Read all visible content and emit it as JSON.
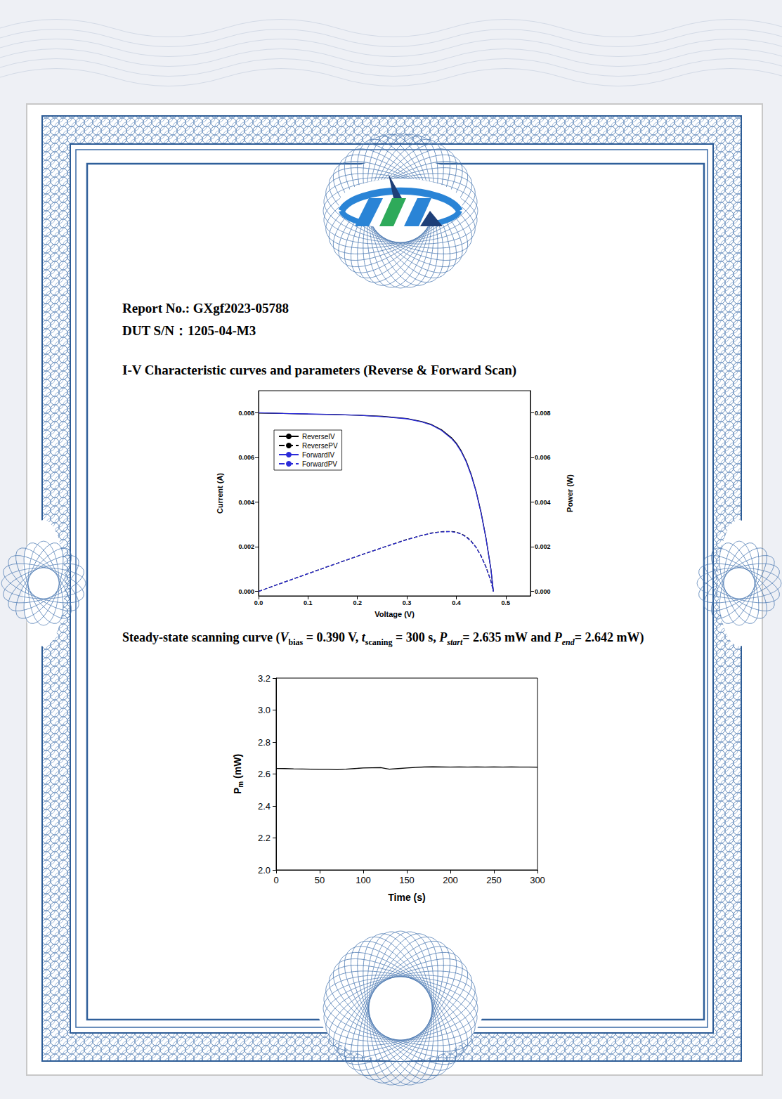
{
  "report_no": "Report No.: GXgf2023-05788",
  "dut_sn": "DUT S/N：1205-04-M3",
  "iv_section_title": "I-V Characteristic curves and parameters (Reverse & Forward Scan)",
  "steady_state_caption": [
    {
      "text": "Steady-state scanning curve ("
    },
    {
      "text": "V",
      "style": "italic"
    },
    {
      "text": "bias",
      "style": "sub"
    },
    {
      "text": " = 0.390 V, "
    },
    {
      "text": "t",
      "style": "italic"
    },
    {
      "text": "scaning",
      "style": "sub"
    },
    {
      "text": " = 300 s, "
    },
    {
      "text": "P",
      "style": "italic"
    },
    {
      "text": "start",
      "style": "sub-italic"
    },
    {
      "text": "= 2.635 mW and "
    },
    {
      "text": "P",
      "style": "italic"
    },
    {
      "text": "end",
      "style": "sub-italic"
    },
    {
      "text": "= 2.642 mW)"
    }
  ],
  "chart_data": [
    {
      "type": "line",
      "xlabel": "Voltage (V)",
      "ylabel": "Current (A)",
      "y2label": "Power (W)",
      "x": [
        0,
        0.05,
        0.1,
        0.15,
        0.2,
        0.25,
        0.3,
        0.33,
        0.35,
        0.37,
        0.39,
        0.4,
        0.41,
        0.42,
        0.43,
        0.44,
        0.45,
        0.46,
        0.47,
        0.475
      ],
      "xlim": [
        0,
        0.55
      ],
      "xticks": [
        {
          "value": 0,
          "label": "0.0"
        },
        0.1,
        0.2,
        0.3,
        0.4,
        0.5
      ],
      "ylim": [
        -0.0002,
        0.009
      ],
      "yticks": [
        {
          "value": 0,
          "label": "0.000"
        },
        {
          "value": 0.002,
          "label": "0.002"
        },
        {
          "value": 0.004,
          "label": "0.004"
        },
        {
          "value": 0.006,
          "label": "0.006"
        },
        {
          "value": 0.008,
          "label": "0.008"
        }
      ],
      "y2lim": [
        -0.0002,
        0.009
      ],
      "y2ticks": [
        {
          "value": 0,
          "label": "0.000"
        },
        {
          "value": 0.002,
          "label": "0.002"
        },
        {
          "value": 0.004,
          "label": "0.004"
        },
        {
          "value": 0.006,
          "label": "0.006"
        },
        {
          "value": 0.008,
          "label": "0.008"
        }
      ],
      "series": [
        {
          "name": "ReverseIV",
          "color": "#000000",
          "line_style": "solid",
          "values": [
            0.008,
            0.00798,
            0.00795,
            0.00793,
            0.0079,
            0.00785,
            0.00775,
            0.00762,
            0.00748,
            0.00725,
            0.0069,
            0.00665,
            0.0063,
            0.00585,
            0.00525,
            0.0045,
            0.00355,
            0.0024,
            0.001,
            0
          ]
        },
        {
          "name": "ReversePV",
          "color": "#000000",
          "line_style": "dashed",
          "axis": "y2",
          "values": [
            0,
            0.000399,
            0.000795,
            0.00119,
            0.00158,
            0.00196,
            0.00233,
            0.00251,
            0.00262,
            0.00268,
            0.00269,
            0.00266,
            0.00258,
            0.00246,
            0.00226,
            0.00198,
            0.0016,
            0.0011,
            0.00047,
            0
          ]
        },
        {
          "name": "ForwardIV",
          "color": "#2b2bd9",
          "line_style": "solid",
          "values": [
            0.00801,
            0.00798,
            0.00796,
            0.00793,
            0.0079,
            0.00784,
            0.00774,
            0.0076,
            0.00746,
            0.00722,
            0.00686,
            0.00661,
            0.00626,
            0.00581,
            0.00521,
            0.00447,
            0.00352,
            0.00238,
            0.00099,
            0
          ]
        },
        {
          "name": "ForwardPV",
          "color": "#2b2bd9",
          "line_style": "dashed",
          "axis": "y2",
          "values": [
            0,
            0.000399,
            0.000796,
            0.00119,
            0.00158,
            0.00196,
            0.00232,
            0.00251,
            0.00261,
            0.00267,
            0.00268,
            0.00264,
            0.00257,
            0.00244,
            0.00224,
            0.00197,
            0.00158,
            0.00109,
            0.00047,
            0
          ]
        }
      ],
      "legend": "upper left",
      "grid": false
    },
    {
      "type": "line",
      "xlabel": "Time (s)",
      "ylabel": [
        {
          "text": "P"
        },
        {
          "text": "m",
          "style": "sub"
        },
        {
          "text": " (mW)"
        }
      ],
      "x": [
        0,
        10,
        20,
        30,
        40,
        50,
        60,
        70,
        80,
        90,
        100,
        110,
        120,
        130,
        140,
        150,
        160,
        170,
        180,
        190,
        200,
        210,
        220,
        230,
        240,
        250,
        260,
        270,
        280,
        290,
        300
      ],
      "xlim": [
        0,
        300
      ],
      "xticks": [
        0,
        50,
        100,
        150,
        200,
        250,
        300
      ],
      "ylim": [
        2.0,
        3.2
      ],
      "yticks": [
        {
          "value": 2,
          "label": "2.0"
        },
        2.2,
        2.4,
        2.6,
        2.8,
        {
          "value": 3,
          "label": "3.0"
        },
        3.2
      ],
      "series": [
        {
          "color": "#000000",
          "line_style": "solid",
          "values": [
            2.635,
            2.634,
            2.632,
            2.631,
            2.63,
            2.629,
            2.629,
            2.627,
            2.63,
            2.634,
            2.638,
            2.639,
            2.64,
            2.63,
            2.634,
            2.638,
            2.641,
            2.644,
            2.645,
            2.644,
            2.643,
            2.644,
            2.643,
            2.644,
            2.643,
            2.644,
            2.643,
            2.644,
            2.643,
            2.643,
            2.642
          ]
        }
      ],
      "grid": false
    }
  ]
}
